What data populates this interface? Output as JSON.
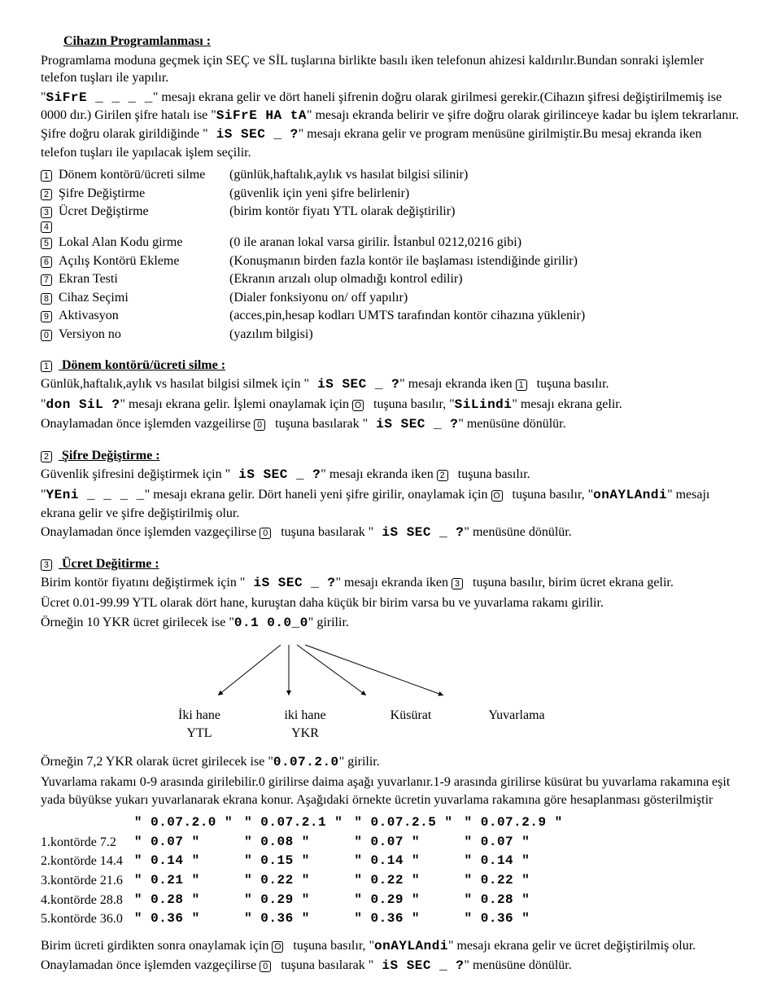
{
  "title": "Cihazın Programlanması :",
  "intro_1": "Programlama moduna geçmek için SEÇ ve SİL tuşlarına birlikte basılı iken telefonun ahizesi kaldırılır.Bundan sonraki işlemler telefon tuşları ile yapılır.",
  "intro_2a": "\"",
  "intro_2b": "SiFrE _ _ _ _",
  "intro_2c": "\" mesajı ekrana gelir ve dört haneli şifrenin doğru olarak girilmesi gerekir.(Cihazın şifresi değiştirilmemiş ise 0000 dır.) Girilen şifre hatalı ise \"",
  "intro_2d": "SiFrE HA tA",
  "intro_2e": "\" mesajı ekranda belirir ve şifre doğru olarak girilinceye kadar bu işlem tekrarlanır. Şifre doğru olarak girildiğinde \"",
  "intro_2f": " iS SEC _ ?",
  "intro_2g": "\" mesajı ekrana gelir ve program menüsüne girilmiştir.Bu mesaj ekranda iken telefon tuşları ile yapılacak işlem seçilir.",
  "menu": [
    {
      "k": "1",
      "label": "Dönem kontörü/ücreti silme",
      "desc": "(günlük,haftalık,aylık vs hasılat bilgisi silinir)"
    },
    {
      "k": "2",
      "label": "Şifre Değiştirme",
      "desc": "(güvenlik için yeni şifre belirlenir)"
    },
    {
      "k": "3",
      "label": "Ücret Değiştirme",
      "desc": "(birim kontör fiyatı YTL olarak değiştirilir)"
    },
    {
      "k": "4",
      "label": "",
      "desc": ""
    },
    {
      "k": "5",
      "label": "Lokal Alan Kodu girme",
      "desc": "(0 ile aranan lokal varsa girilir. İstanbul 0212,0216 gibi)"
    },
    {
      "k": "6",
      "label": "Açılış Kontörü Ekleme",
      "desc": "(Konuşmanın birden fazla kontör ile başlaması istendiğinde girilir)"
    },
    {
      "k": "7",
      "label": "Ekran Testi",
      "desc": "(Ekranın arızalı olup olmadığı kontrol edilir)"
    },
    {
      "k": "8",
      "label": "Cihaz Seçimi",
      "desc": "(Dialer fonksiyonu on/ off yapılır)"
    },
    {
      "k": "9",
      "label": "Aktivasyon",
      "desc": "(acces,pin,hesap kodları UMTS tarafından kontör cihazına yüklenir)"
    },
    {
      "k": "0",
      "label": "Versiyon no",
      "desc": "(yazılım bilgisi)"
    }
  ],
  "s1_title": " Dönem kontörü/ücreti silme :",
  "s1_line1a": "Günlük,haftalık,aylık vs hasılat bilgisi silmek için  \"",
  "s1_line1b": " iS SEC _ ?",
  "s1_line1c": "\" mesajı ekranda iken ",
  "s1_line1d": " tuşuna basılır.",
  "s1_line2a": " \"",
  "s1_line2b": "don SiL ?",
  "s1_line2c": "\" mesajı ekrana gelir. İşlemi onaylamak için ",
  "s1_line2d": "  tuşuna basılır,  \"",
  "s1_line2e": "SiLindi",
  "s1_line2f": "\" mesajı ekrana gelir.",
  "s1_line3a": " Onaylamadan önce işlemden vazgeilirse ",
  "s1_line3b": "  tuşuna basılarak \"",
  "s1_line3c": " iS SEC _ ?",
  "s1_line3d": "\" menüsüne dönülür.",
  "s2_title": " Şifre Değiştirme :",
  "s2_line1a": "Güvenlik şifresini değiştirmek için \"",
  "s2_line1b": " iS SEC _ ?",
  "s2_line1c": "\" mesajı ekranda iken ",
  "s2_line1d": " tuşuna basılır.",
  "s2_line2a": " \"",
  "s2_line2b": "YEni _ _ _ _",
  "s2_line2c": "\" mesajı ekrana gelir. Dört haneli yeni şifre girilir, onaylamak için ",
  "s2_line2d": " tuşuna basılır, \"",
  "s2_line2e": "onAYLAndi",
  "s2_line2f": "\" mesajı ekrana gelir ve şifre değiştirilmiş olur.",
  "s2_line3a": "Onaylamadan önce işlemden vazgeçilirse ",
  "s2_line3b": " tuşuna basılarak \"",
  "s2_line3c": " iS SEC _ ?",
  "s2_line3d": "\" menüsüne dönülür.",
  "s3_title": " Ücret Değitirme :",
  "s3_line1a": "Birim kontör fiyatını değiştirmek için \"",
  "s3_line1b": " iS SEC _ ?",
  "s3_line1c": "\" mesajı ekranda iken ",
  "s3_line1d": " tuşuna basılır, birim ücret ekrana gelir.",
  "s3_line2": "Ücret 0.01-99.99 YTL olarak dört hane, kuruştan daha küçük bir birim varsa bu ve yuvarlama rakamı girilir.",
  "s3_line3a": "Örneğin 10 YKR ücret girilecek ise \"",
  "s3_line3b": "0.1 0.0_0",
  "s3_line3c": "\" girilir.",
  "arrow_labels": [
    {
      "top": "İki hane",
      "bot": "YTL"
    },
    {
      "top": "iki hane",
      "bot": "YKR"
    },
    {
      "top": "Küsürat",
      "bot": ""
    },
    {
      "top": "Yuvarlama",
      "bot": ""
    }
  ],
  "s3_ex2a": "Örneğin 7,2 YKR olarak ücret girilecek ise \"",
  "s3_ex2b": "0.07.2.0",
  "s3_ex2c": "\" girilir.",
  "s3_ex3": "Yuvarlama rakamı 0-9 arasında girilebilir.0 girilirse daima aşağı yuvarlanır.1-9 arasında girilirse küsürat bu yuvarlama rakamına eşit yada büyükse yukarı yuvarlanarak ekrana konur. Aşağıdaki örnekte ücretin yuvarlama rakamına göre hesaplanması gösterilmiştir",
  "rate_header": [
    "\" 0.07.2.0 \"",
    "\" 0.07.2.1 \"",
    "\" 0.07.2.5 \"",
    "\" 0.07.2.9 \""
  ],
  "rate_rows": [
    {
      "label": "1.kontörde   7.2",
      "cells": [
        "\"  0.07 \"",
        "\"  0.08 \"",
        "\"  0.07 \"",
        "\"  0.07 \""
      ]
    },
    {
      "label": "2.kontörde 14.4",
      "cells": [
        "\"  0.14 \"",
        "\"  0.15 \"",
        "\"  0.14 \"",
        "\"  0.14 \""
      ]
    },
    {
      "label": "3.kontörde 21.6",
      "cells": [
        "\"  0.21 \"",
        "\"  0.22 \"",
        "\"  0.22 \"",
        "\"  0.22 \""
      ]
    },
    {
      "label": "4.kontörde 28.8",
      "cells": [
        "\"  0.28 \"",
        "\"  0.29 \"",
        "\"  0.29 \"",
        "\"  0.28 \""
      ]
    },
    {
      "label": "5.kontörde 36.0",
      "cells": [
        "\"  0.36 \"",
        "\"  0.36 \"",
        "\"  0.36 \"",
        "\"  0.36 \""
      ]
    }
  ],
  "s3_end1a": "Birim ücreti girdikten sonra onaylamak için ",
  "s3_end1b": " tuşuna basılır, \"",
  "s3_end1c": "onAYLAndi",
  "s3_end1d": "\" mesajı ekrana gelir ve ücret değiştirilmiş olur.",
  "s3_end2a": "Onaylamadan önce işlemden vazgeçilirse ",
  "s3_end2b": " tuşuna basılarak \"",
  "s3_end2c": " iS SEC _ ?",
  "s3_end2d": "\" menüsüne dönülür.",
  "keys": {
    "k0": "0",
    "k1": "1",
    "k2": "2",
    "k3": "3",
    "ko": "O"
  }
}
